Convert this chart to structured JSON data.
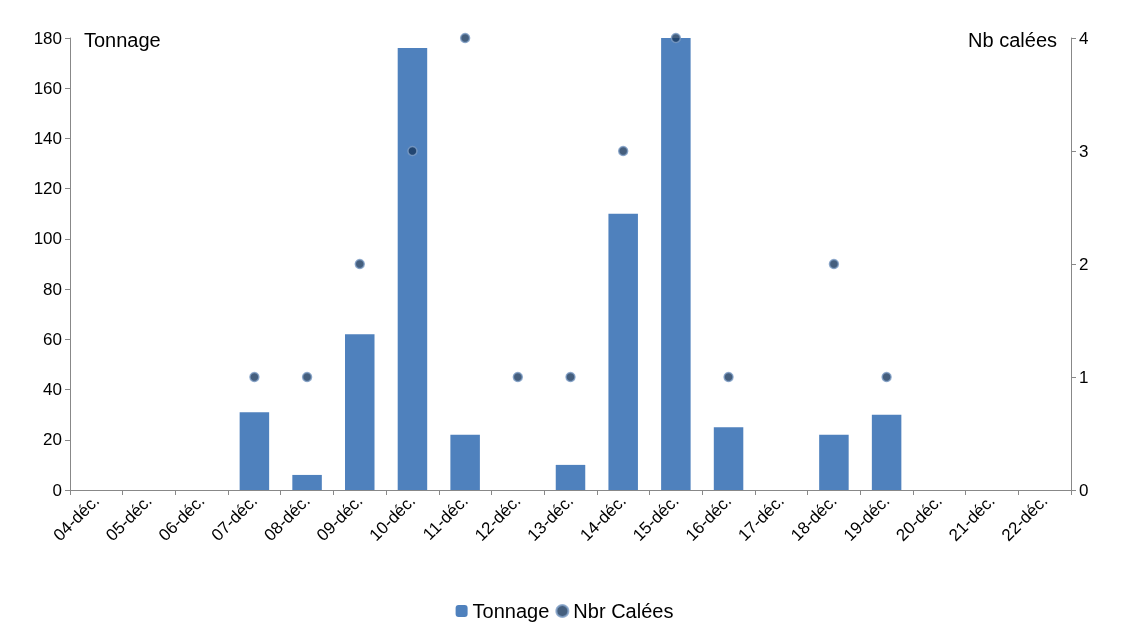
{
  "chart_data": {
    "type": "bar",
    "ylabel": "Tonnage",
    "y2label": "Nb calées",
    "categories": [
      "04-déc.",
      "05-déc.",
      "06-déc.",
      "07-déc.",
      "08-déc.",
      "09-déc.",
      "10-déc.",
      "11-déc.",
      "12-déc.",
      "13-déc.",
      "14-déc.",
      "15-déc.",
      "16-déc.",
      "17-déc.",
      "18-déc.",
      "19-déc.",
      "20-déc.",
      "21-déc.",
      "22-déc."
    ],
    "series": [
      {
        "name": "Tonnage",
        "color": "#4f81bd",
        "values": [
          0,
          0,
          0,
          31,
          6,
          62,
          176,
          22,
          0,
          10,
          110,
          180,
          25,
          0,
          22,
          30,
          0,
          0,
          0
        ]
      },
      {
        "name": "Nbr Calées",
        "type": "scatter",
        "axis": "y2",
        "color": "#17375e",
        "values": [
          null,
          null,
          null,
          1,
          1,
          2,
          3,
          4,
          1,
          1,
          3,
          4,
          1,
          null,
          2,
          1,
          null,
          null,
          null
        ]
      }
    ],
    "ylim": [
      0,
      180
    ],
    "yticks": [
      0,
      20,
      40,
      60,
      80,
      100,
      120,
      140,
      160,
      180
    ],
    "y2lim": [
      0,
      4
    ],
    "y2ticks": [
      0,
      1,
      2,
      3,
      4
    ],
    "marker": "circle",
    "grid": false,
    "legend": "bottom"
  }
}
